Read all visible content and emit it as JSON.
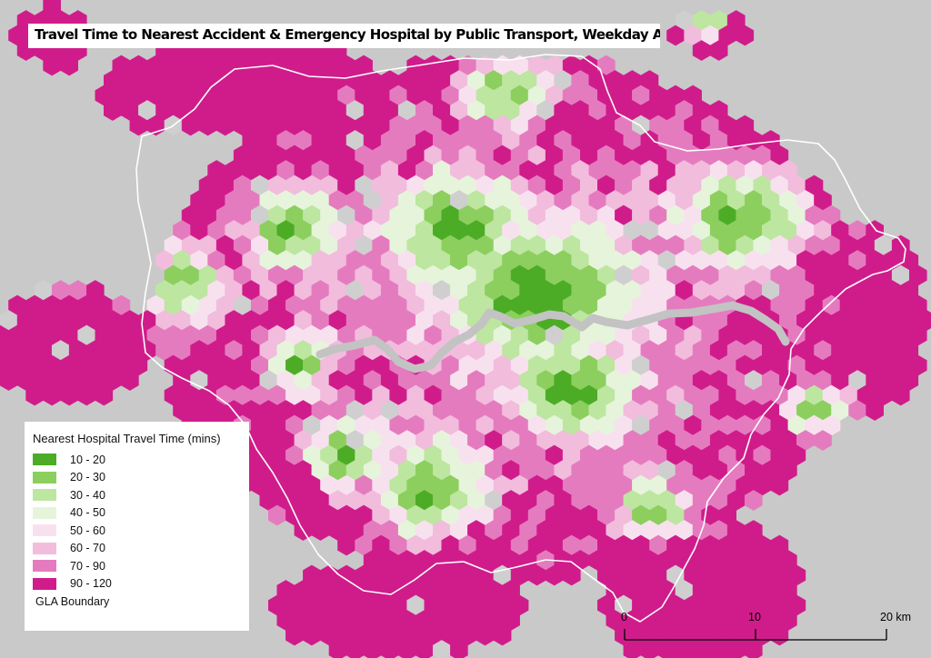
{
  "title": "Travel Time to Nearest Accident & Emergency Hospital by Public Transport, Weekday Afternoon",
  "legend": {
    "title": "Nearest Hospital Travel Time (mins)",
    "classes": [
      {
        "label": "10 - 20",
        "color": "#4dac26"
      },
      {
        "label": "20 - 30",
        "color": "#8ccf5e"
      },
      {
        "label": "30 - 40",
        "color": "#bde6a0"
      },
      {
        "label": "40 - 50",
        "color": "#e6f4db"
      },
      {
        "label": "50 - 60",
        "color": "#f8e1ef"
      },
      {
        "label": "60 - 70",
        "color": "#f2bcdd"
      },
      {
        "label": "70 - 90",
        "color": "#e57bbf"
      },
      {
        "label": "90 - 120",
        "color": "#d01c8b"
      }
    ],
    "boundary_label": "GLA Boundary"
  },
  "scale": {
    "ticks": [
      "0",
      "10",
      "20 km"
    ]
  },
  "colors": {
    "background": "#c9c9c9",
    "nodata": "#cfcfcf",
    "river": "#c3c3c3",
    "boundary": "#ffffff"
  }
}
